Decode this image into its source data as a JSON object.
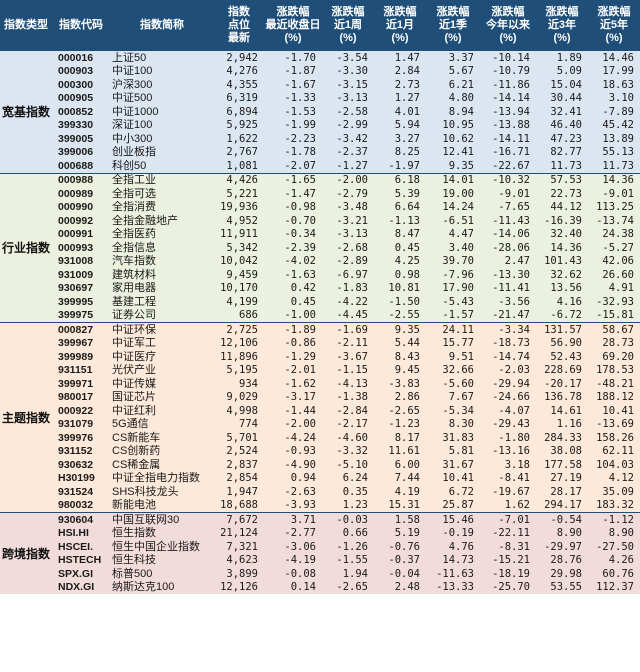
{
  "headers": [
    {
      "lines": [
        "指数类型"
      ]
    },
    {
      "lines": [
        "指数代码"
      ]
    },
    {
      "lines": [
        "指数简称"
      ]
    },
    {
      "lines": [
        "指数",
        "点位",
        "最新"
      ]
    },
    {
      "lines": [
        "涨跌幅",
        "最近收盘日",
        "(%)"
      ]
    },
    {
      "lines": [
        "涨跌幅",
        "近1周",
        "(%)"
      ]
    },
    {
      "lines": [
        "涨跌幅",
        "近1月",
        "(%)"
      ]
    },
    {
      "lines": [
        "涨跌幅",
        "近1季",
        "(%)"
      ]
    },
    {
      "lines": [
        "涨跌幅",
        "今年以来",
        "(%)"
      ]
    },
    {
      "lines": [
        "涨跌幅",
        "近3年",
        "(%)"
      ]
    },
    {
      "lines": [
        "涨跌幅",
        "近5年",
        "(%)"
      ]
    }
  ],
  "groups": [
    {
      "name": "宽基指数",
      "color": "#dce6f1",
      "rows": [
        {
          "code": "000016",
          "name": "上证50",
          "vals": [
            "2,942",
            "-1.70",
            "-3.54",
            "1.47",
            "3.37",
            "-10.14",
            "1.89",
            "14.46"
          ]
        },
        {
          "code": "000903",
          "name": "中证100",
          "vals": [
            "4,276",
            "-1.87",
            "-3.30",
            "2.84",
            "5.67",
            "-10.79",
            "5.09",
            "17.99"
          ]
        },
        {
          "code": "000300",
          "name": "沪深300",
          "vals": [
            "4,355",
            "-1.67",
            "-3.15",
            "2.73",
            "6.21",
            "-11.86",
            "15.04",
            "18.63"
          ]
        },
        {
          "code": "000905",
          "name": "中证500",
          "vals": [
            "6,319",
            "-1.33",
            "-3.13",
            "1.27",
            "4.80",
            "-14.14",
            "30.44",
            "3.10"
          ]
        },
        {
          "code": "000852",
          "name": "中证1000",
          "vals": [
            "6,894",
            "-1.53",
            "-2.58",
            "4.01",
            "8.94",
            "-13.94",
            "32.41",
            "-7.89"
          ]
        },
        {
          "code": "399330",
          "name": "深证100",
          "vals": [
            "5,925",
            "-1.99",
            "-2.99",
            "5.94",
            "10.95",
            "-13.88",
            "46.40",
            "45.42"
          ]
        },
        {
          "code": "399005",
          "name": "中小300",
          "vals": [
            "1,622",
            "-2.23",
            "-3.42",
            "3.27",
            "10.62",
            "-14.11",
            "47.23",
            "13.89"
          ]
        },
        {
          "code": "399006",
          "name": "创业板指",
          "vals": [
            "2,767",
            "-1.78",
            "-2.37",
            "8.25",
            "12.41",
            "-16.71",
            "82.77",
            "55.13"
          ]
        },
        {
          "code": "000688",
          "name": "科创50",
          "vals": [
            "1,081",
            "-2.07",
            "-1.27",
            "-1.97",
            "9.35",
            "-22.67",
            "11.73",
            "11.73"
          ]
        }
      ]
    },
    {
      "name": "行业指数",
      "color": "#ebf1de",
      "rows": [
        {
          "code": "000988",
          "name": "全指工业",
          "vals": [
            "4,426",
            "-1.65",
            "-2.00",
            "6.18",
            "14.01",
            "-10.32",
            "57.53",
            "14.36"
          ]
        },
        {
          "code": "000989",
          "name": "全指可选",
          "vals": [
            "5,221",
            "-1.47",
            "-2.79",
            "5.39",
            "19.00",
            "-9.01",
            "22.73",
            "-9.01"
          ]
        },
        {
          "code": "000990",
          "name": "全指消费",
          "vals": [
            "19,936",
            "-0.98",
            "-3.48",
            "6.64",
            "14.24",
            "-7.65",
            "44.12",
            "113.25"
          ]
        },
        {
          "code": "000992",
          "name": "全指金融地产",
          "vals": [
            "4,952",
            "-0.70",
            "-3.21",
            "-1.13",
            "-6.51",
            "-11.43",
            "-16.39",
            "-13.74"
          ]
        },
        {
          "code": "000991",
          "name": "全指医药",
          "vals": [
            "11,911",
            "-0.34",
            "-3.13",
            "8.47",
            "4.47",
            "-14.06",
            "32.40",
            "24.38"
          ]
        },
        {
          "code": "000993",
          "name": "全指信息",
          "vals": [
            "5,342",
            "-2.39",
            "-2.68",
            "0.45",
            "3.40",
            "-28.06",
            "14.36",
            "-5.27"
          ]
        },
        {
          "code": "931008",
          "name": "汽车指数",
          "vals": [
            "10,042",
            "-4.02",
            "-2.89",
            "4.25",
            "39.70",
            "2.47",
            "101.43",
            "42.06"
          ]
        },
        {
          "code": "931009",
          "name": "建筑材料",
          "vals": [
            "9,459",
            "-1.63",
            "-6.97",
            "0.98",
            "-7.96",
            "-13.30",
            "32.62",
            "26.60"
          ]
        },
        {
          "code": "930697",
          "name": "家用电器",
          "vals": [
            "10,170",
            "0.42",
            "-1.83",
            "10.81",
            "17.90",
            "-11.41",
            "13.56",
            "4.91"
          ]
        },
        {
          "code": "399995",
          "name": "基建工程",
          "vals": [
            "4,199",
            "0.45",
            "-4.22",
            "-1.50",
            "-5.43",
            "-3.56",
            "4.16",
            "-32.93"
          ]
        },
        {
          "code": "399975",
          "name": "证券公司",
          "vals": [
            "686",
            "-1.00",
            "-4.45",
            "-2.55",
            "-1.57",
            "-21.47",
            "-6.72",
            "-15.81"
          ]
        }
      ]
    },
    {
      "name": "主题指数",
      "color": "#fde9d9",
      "rows": [
        {
          "code": "000827",
          "name": "中证环保",
          "vals": [
            "2,725",
            "-1.89",
            "-1.69",
            "9.35",
            "24.11",
            "-3.34",
            "131.57",
            "58.67"
          ]
        },
        {
          "code": "399967",
          "name": "中证军工",
          "vals": [
            "12,106",
            "-0.86",
            "-2.11",
            "5.44",
            "15.77",
            "-18.73",
            "56.90",
            "28.73"
          ]
        },
        {
          "code": "399989",
          "name": "中证医疗",
          "vals": [
            "11,896",
            "-1.29",
            "-3.67",
            "8.43",
            "9.51",
            "-14.74",
            "52.43",
            "69.20"
          ]
        },
        {
          "code": "931151",
          "name": "光伏产业",
          "vals": [
            "5,195",
            "-2.01",
            "-1.15",
            "9.45",
            "32.66",
            "-2.03",
            "228.69",
            "178.53"
          ]
        },
        {
          "code": "399971",
          "name": "中证传媒",
          "vals": [
            "934",
            "-1.62",
            "-4.13",
            "-3.83",
            "-5.60",
            "-29.94",
            "-20.17",
            "-48.21"
          ]
        },
        {
          "code": "980017",
          "name": "国证芯片",
          "vals": [
            "9,029",
            "-3.17",
            "-1.38",
            "2.86",
            "7.67",
            "-24.66",
            "136.78",
            "188.12"
          ]
        },
        {
          "code": "000922",
          "name": "中证红利",
          "vals": [
            "4,998",
            "-1.44",
            "-2.84",
            "-2.65",
            "-5.34",
            "-4.07",
            "14.61",
            "10.41"
          ]
        },
        {
          "code": "931079",
          "name": "5G通信",
          "vals": [
            "774",
            "-2.00",
            "-2.17",
            "-1.23",
            "8.30",
            "-29.43",
            "1.16",
            "-13.69"
          ]
        },
        {
          "code": "399976",
          "name": "CS新能车",
          "vals": [
            "5,701",
            "-4.24",
            "-4.60",
            "8.17",
            "31.83",
            "-1.80",
            "284.33",
            "158.26"
          ]
        },
        {
          "code": "931152",
          "name": "CS创新药",
          "vals": [
            "2,524",
            "-0.93",
            "-3.32",
            "11.61",
            "5.81",
            "-13.16",
            "38.08",
            "62.11"
          ]
        },
        {
          "code": "930632",
          "name": "CS稀金属",
          "vals": [
            "2,837",
            "-4.90",
            "-5.10",
            "6.00",
            "31.67",
            "3.18",
            "177.58",
            "104.03"
          ]
        },
        {
          "code": "H30199",
          "name": "中证全指电力指数",
          "vals": [
            "2,854",
            "0.94",
            "6.24",
            "7.44",
            "10.41",
            "-8.41",
            "27.19",
            "4.12"
          ]
        },
        {
          "code": "931524",
          "name": "SHS科技龙头",
          "vals": [
            "1,947",
            "-2.63",
            "0.35",
            "4.19",
            "6.72",
            "-19.67",
            "28.17",
            "35.09"
          ]
        },
        {
          "code": "980032",
          "name": "新能电池",
          "vals": [
            "18,688",
            "-3.93",
            "1.23",
            "15.31",
            "25.87",
            "1.62",
            "294.17",
            "183.32"
          ]
        }
      ]
    },
    {
      "name": "跨境指数",
      "color": "#f2dcdb",
      "rows": [
        {
          "code": "930604",
          "name": "中国互联网30",
          "vals": [
            "7,672",
            "3.71",
            "-0.03",
            "1.58",
            "15.46",
            "-7.01",
            "-0.54",
            "-1.12"
          ]
        },
        {
          "code": "HSI.HI",
          "name": "恒生指数",
          "vals": [
            "21,124",
            "-2.77",
            "0.66",
            "5.19",
            "-0.19",
            "-22.11",
            "8.90",
            "8.90"
          ]
        },
        {
          "code": "HSCEI.",
          "name": "恒生中国企业指数",
          "vals": [
            "7,321",
            "-3.06",
            "-1.26",
            "-0.76",
            "4.76",
            "-8.31",
            "-29.97",
            "-27.50"
          ]
        },
        {
          "code": "HSTECH",
          "name": "恒生科技",
          "vals": [
            "4,623",
            "-4.19",
            "-1.55",
            "-0.37",
            "14.73",
            "-15.21",
            "28.76",
            "4.26"
          ]
        },
        {
          "code": "SPX.GI",
          "name": "标普500",
          "vals": [
            "3,899",
            "-0.08",
            "1.94",
            "-0.04",
            "-11.63",
            "-18.19",
            "29.98",
            "60.76"
          ]
        },
        {
          "code": "NDX.GI",
          "name": "纳斯达克100",
          "vals": [
            "12,126",
            "0.14",
            "-2.65",
            "2.48",
            "-13.33",
            "-25.70",
            "53.55",
            "112.37"
          ]
        }
      ]
    }
  ]
}
